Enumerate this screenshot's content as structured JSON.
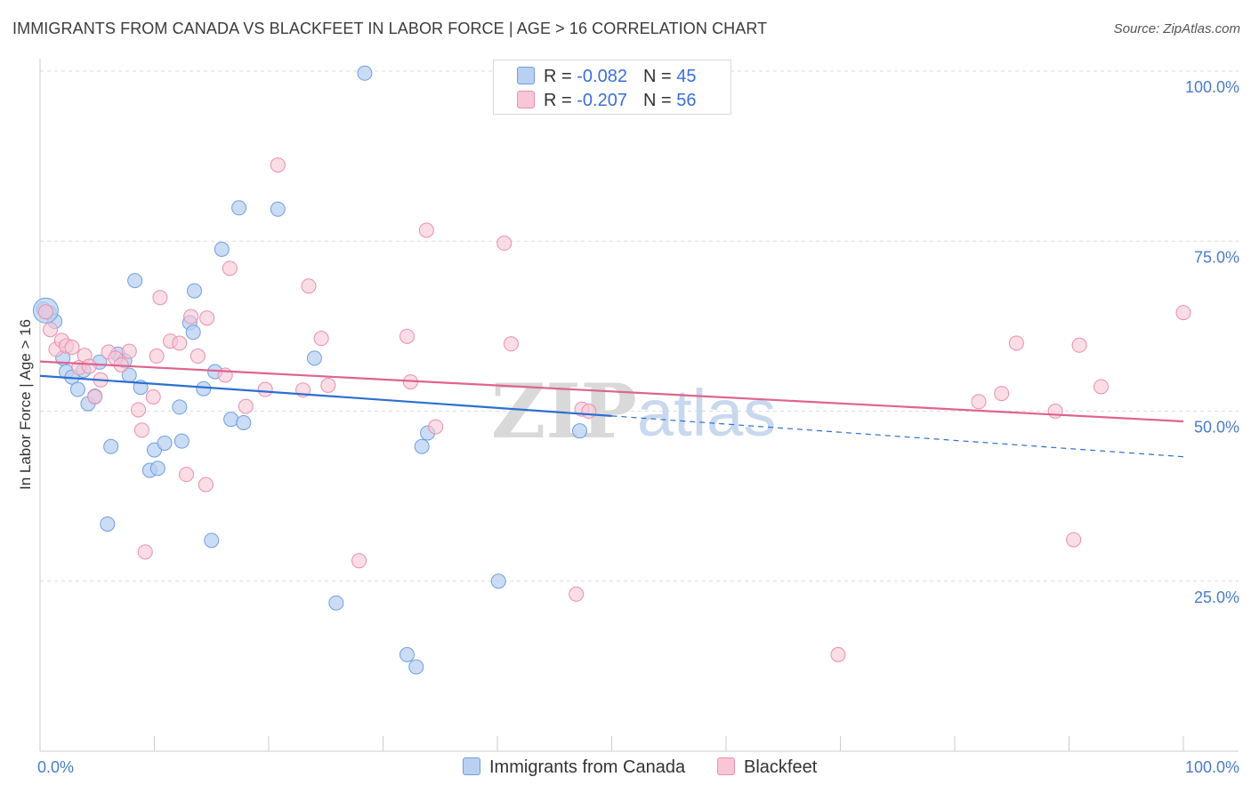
{
  "header": {
    "title": "IMMIGRANTS FROM CANADA VS BLACKFEET IN LABOR FORCE | AGE > 16 CORRELATION CHART",
    "source_label": "Source:",
    "source_value": "ZipAtlas.com"
  },
  "watermark": {
    "zip": "ZIP",
    "atlas": "atlas"
  },
  "legend": {
    "rows": [
      {
        "r_label": "R =",
        "r_value": "-0.082",
        "n_label": "N =",
        "n_value": "45"
      },
      {
        "r_label": "R =",
        "r_value": "-0.207",
        "n_label": "N =",
        "n_value": "56"
      }
    ]
  },
  "chart_data": {
    "type": "scatter",
    "title": "IMMIGRANTS FROM CANADA VS BLACKFEET IN LABOR FORCE | AGE > 16 CORRELATION CHART",
    "xlabel": "",
    "ylabel": "In Labor Force | Age > 16",
    "xlim": [
      0,
      100
    ],
    "ylim": [
      0,
      100
    ],
    "x_tick_labels": [
      "0.0%",
      "100.0%"
    ],
    "y_ticks": [
      25,
      50,
      75,
      100
    ],
    "y_tick_labels": [
      "25.0%",
      "50.0%",
      "75.0%",
      "100.0%"
    ],
    "grid": true,
    "colors": {
      "canada_fill": "#b9d0f2",
      "canada_stroke": "#6f9fe0",
      "canada_line": "#2b6fd1",
      "blackfeet_fill": "#f9c6d6",
      "blackfeet_stroke": "#e98fad",
      "blackfeet_line": "#e0638d",
      "grid": "#dcdcdc",
      "axis": "#cccccc"
    },
    "series": [
      {
        "name": "Immigrants from Canada",
        "r": -0.082,
        "n": 45,
        "trend": {
          "x0": 0,
          "y0": 55.2,
          "x1": 50,
          "y1": 49.3,
          "dash_x1": 100,
          "dash_y1": 43.3
        },
        "points": [
          [
            0.3,
            65.0
          ],
          [
            0.8,
            64.5
          ],
          [
            1.3,
            63.2
          ],
          [
            2.0,
            57.8
          ],
          [
            2.3,
            55.8
          ],
          [
            2.8,
            55.0
          ],
          [
            3.3,
            53.2
          ],
          [
            3.8,
            56.0
          ],
          [
            4.2,
            51.1
          ],
          [
            4.8,
            52.2
          ],
          [
            5.2,
            57.2
          ],
          [
            6.2,
            44.8
          ],
          [
            5.9,
            33.4
          ],
          [
            6.8,
            58.4
          ],
          [
            7.4,
            57.4
          ],
          [
            7.8,
            55.3
          ],
          [
            8.3,
            69.2
          ],
          [
            8.8,
            53.5
          ],
          [
            9.6,
            41.3
          ],
          [
            10.0,
            44.3
          ],
          [
            10.3,
            41.6
          ],
          [
            10.9,
            45.3
          ],
          [
            12.2,
            50.6
          ],
          [
            12.4,
            45.6
          ],
          [
            13.1,
            63.0
          ],
          [
            13.4,
            61.6
          ],
          [
            13.5,
            67.7
          ],
          [
            14.3,
            53.3
          ],
          [
            15.0,
            31.0
          ],
          [
            15.3,
            55.8
          ],
          [
            15.9,
            73.8
          ],
          [
            16.7,
            48.8
          ],
          [
            17.4,
            79.9
          ],
          [
            17.8,
            48.3
          ],
          [
            20.8,
            79.7
          ],
          [
            24.0,
            57.8
          ],
          [
            25.9,
            21.8
          ],
          [
            28.4,
            99.7
          ],
          [
            32.1,
            14.2
          ],
          [
            32.9,
            12.4
          ],
          [
            33.4,
            44.8
          ],
          [
            33.9,
            46.8
          ],
          [
            40.1,
            25.0
          ],
          [
            47.2,
            47.1
          ],
          [
            0.5,
            64.8
          ]
        ]
      },
      {
        "name": "Blackfeet",
        "r": -0.207,
        "n": 56,
        "trend": {
          "x0": 0,
          "y0": 57.3,
          "x1": 100,
          "y1": 48.5
        },
        "points": [
          [
            0.5,
            64.6
          ],
          [
            0.9,
            62.0
          ],
          [
            1.4,
            59.1
          ],
          [
            1.9,
            60.4
          ],
          [
            2.3,
            59.6
          ],
          [
            2.8,
            59.4
          ],
          [
            3.4,
            56.4
          ],
          [
            3.9,
            58.2
          ],
          [
            4.3,
            56.6
          ],
          [
            4.8,
            52.1
          ],
          [
            5.3,
            54.6
          ],
          [
            6.0,
            58.7
          ],
          [
            6.6,
            57.8
          ],
          [
            7.1,
            56.8
          ],
          [
            7.8,
            58.8
          ],
          [
            8.6,
            50.2
          ],
          [
            8.9,
            47.2
          ],
          [
            9.2,
            29.3
          ],
          [
            9.9,
            52.1
          ],
          [
            10.2,
            58.1
          ],
          [
            10.5,
            66.7
          ],
          [
            11.4,
            60.3
          ],
          [
            12.2,
            60.0
          ],
          [
            12.8,
            40.7
          ],
          [
            13.2,
            63.9
          ],
          [
            13.8,
            58.1
          ],
          [
            14.5,
            39.2
          ],
          [
            14.6,
            63.7
          ],
          [
            16.2,
            55.3
          ],
          [
            16.6,
            71.0
          ],
          [
            18.0,
            50.7
          ],
          [
            19.7,
            53.2
          ],
          [
            20.8,
            86.2
          ],
          [
            23.0,
            53.1
          ],
          [
            23.5,
            68.4
          ],
          [
            24.6,
            60.7
          ],
          [
            25.2,
            53.8
          ],
          [
            27.9,
            28.0
          ],
          [
            32.1,
            61.0
          ],
          [
            32.4,
            54.3
          ],
          [
            33.8,
            76.6
          ],
          [
            34.6,
            47.7
          ],
          [
            40.6,
            74.7
          ],
          [
            41.2,
            59.9
          ],
          [
            46.9,
            23.1
          ],
          [
            47.4,
            50.3
          ],
          [
            48.0,
            50.0
          ],
          [
            69.8,
            14.2
          ],
          [
            82.1,
            51.4
          ],
          [
            84.1,
            52.6
          ],
          [
            85.4,
            60.0
          ],
          [
            88.8,
            50.0
          ],
          [
            90.4,
            31.1
          ],
          [
            90.9,
            59.7
          ],
          [
            92.8,
            53.6
          ],
          [
            100.0,
            64.5
          ]
        ]
      }
    ]
  },
  "bottom_legend": {
    "items": [
      {
        "label": "Immigrants from Canada"
      },
      {
        "label": "Blackfeet"
      }
    ]
  }
}
